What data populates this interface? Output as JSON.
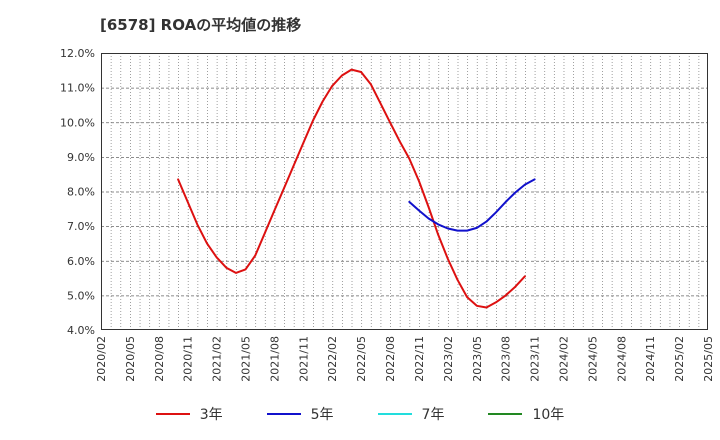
{
  "title": "[6578]  ROAの平均値の推移",
  "chart_data": {
    "type": "line",
    "title": "[6578]  ROAの平均値の推移",
    "xlabel": "",
    "ylabel": "",
    "ylim": [
      4.0,
      12.0
    ],
    "y_ticks": [
      "4.0%",
      "5.0%",
      "6.0%",
      "7.0%",
      "8.0%",
      "9.0%",
      "10.0%",
      "11.0%",
      "12.0%"
    ],
    "x_ticks": [
      "2020/02",
      "2020/05",
      "2020/08",
      "2020/11",
      "2021/02",
      "2021/05",
      "2021/08",
      "2021/11",
      "2022/02",
      "2022/05",
      "2022/08",
      "2022/11",
      "2023/02",
      "2023/05",
      "2023/08",
      "2023/11",
      "2024/02",
      "2024/05",
      "2024/08",
      "2024/11",
      "2025/02",
      "2025/05"
    ],
    "legend": [
      "3年",
      "5年",
      "7年",
      "10年"
    ],
    "legend_position": "bottom",
    "grid": true,
    "series": [
      {
        "name": "3年",
        "color": "#dd1111",
        "start_index": 8,
        "values": [
          8.35,
          7.7,
          7.05,
          6.5,
          6.1,
          5.8,
          5.65,
          5.75,
          6.15,
          6.8,
          7.45,
          8.1,
          8.75,
          9.4,
          10.05,
          10.6,
          11.05,
          11.35,
          11.52,
          11.45,
          11.1,
          10.55,
          10.0,
          9.45,
          8.95,
          8.3,
          7.55,
          6.75,
          6.05,
          5.45,
          4.95,
          4.7,
          4.65,
          4.8,
          5.0,
          5.25,
          5.55
        ]
      },
      {
        "name": "5年",
        "color": "#1111cc",
        "start_index": 32,
        "values": [
          7.7,
          7.45,
          7.22,
          7.05,
          6.93,
          6.87,
          6.87,
          6.95,
          7.13,
          7.4,
          7.7,
          7.97,
          8.2,
          8.35
        ]
      },
      {
        "name": "7年",
        "color": "#22dddd",
        "start_index": 0,
        "values": []
      },
      {
        "name": "10年",
        "color": "#228822",
        "start_index": 0,
        "values": []
      }
    ]
  }
}
